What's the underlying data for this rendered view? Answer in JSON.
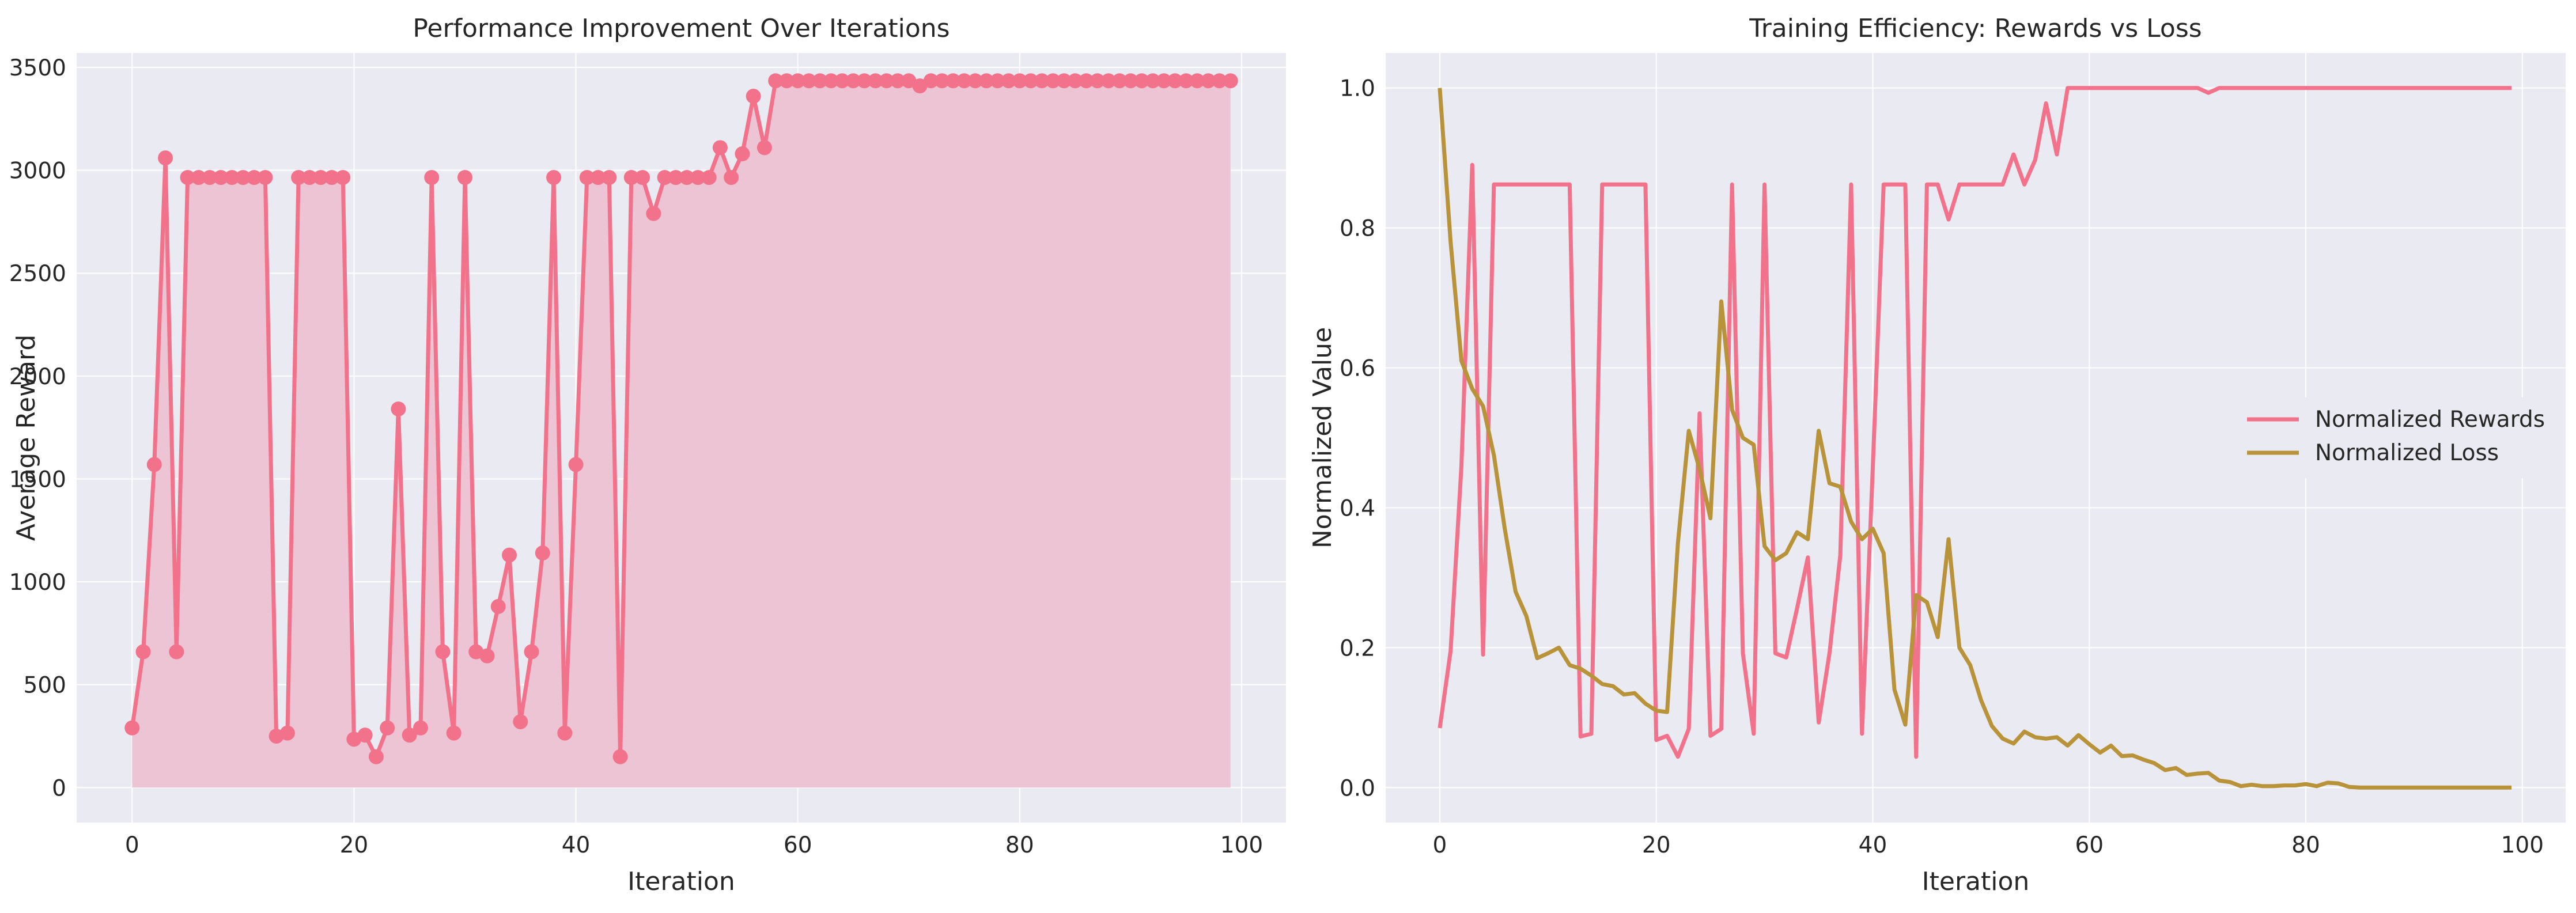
{
  "style": {
    "background": "#eaeaf2",
    "grid": "#ffffff",
    "pink": "#f1728a",
    "fill_pink": "#ecc4d4",
    "olive": "#b8933a"
  },
  "chart_data": [
    {
      "type": "line",
      "title": "Performance Improvement Over Iterations",
      "xlabel": "Iteration",
      "ylabel": "Average Reward",
      "xlim": [
        -5,
        104
      ],
      "ylim": [
        -170,
        3570
      ],
      "xticks": [
        0,
        20,
        40,
        60,
        80,
        100
      ],
      "yticks": [
        0,
        500,
        1000,
        1500,
        2000,
        2500,
        3000,
        3500
      ],
      "grid": true,
      "area_fill": true,
      "markers": true,
      "series": [
        {
          "values": [
            290,
            660,
            1570,
            3060,
            660,
            2965,
            2965,
            2965,
            2965,
            2965,
            2965,
            2965,
            2965,
            250,
            265,
            2965,
            2965,
            2965,
            2965,
            2965,
            235,
            255,
            150,
            290,
            1840,
            255,
            290,
            2965,
            660,
            265,
            2965,
            660,
            640,
            880,
            1130,
            320,
            660,
            1140,
            2965,
            265,
            1570,
            2965,
            2965,
            2965,
            150,
            2965,
            2965,
            2790,
            2965,
            2965,
            2965,
            2965,
            2965,
            3110,
            2965,
            3080,
            3360,
            3110,
            3435,
            3435,
            3435,
            3435,
            3435,
            3435,
            3435,
            3435,
            3435,
            3435,
            3435,
            3435,
            3435,
            3410,
            3435,
            3435,
            3435,
            3435,
            3435,
            3435,
            3435,
            3435,
            3435,
            3435,
            3435,
            3435,
            3435,
            3435,
            3435,
            3435,
            3435,
            3435,
            3435,
            3435,
            3435,
            3435,
            3435,
            3435,
            3435,
            3435,
            3435,
            3435
          ]
        }
      ]
    },
    {
      "type": "line",
      "title": "Training Efficiency: Rewards vs Loss",
      "xlabel": "Iteration",
      "ylabel": "Normalized Value",
      "xlim": [
        -5,
        104
      ],
      "ylim": [
        -0.05,
        1.05
      ],
      "xticks": [
        0,
        20,
        40,
        60,
        80,
        100
      ],
      "yticks": [
        0.0,
        0.2,
        0.4,
        0.6,
        0.8,
        1.0
      ],
      "grid": true,
      "legend": "center-right",
      "series": [
        {
          "name": "Normalized Rewards",
          "values": [
            0.085,
            0.195,
            0.46,
            0.89,
            0.19,
            0.862,
            0.862,
            0.862,
            0.862,
            0.862,
            0.862,
            0.862,
            0.862,
            0.073,
            0.077,
            0.862,
            0.862,
            0.862,
            0.862,
            0.862,
            0.068,
            0.074,
            0.044,
            0.084,
            0.535,
            0.074,
            0.084,
            0.862,
            0.192,
            0.077,
            0.862,
            0.192,
            0.186,
            0.256,
            0.329,
            0.093,
            0.192,
            0.332,
            0.862,
            0.077,
            0.457,
            0.862,
            0.862,
            0.862,
            0.044,
            0.862,
            0.862,
            0.812,
            0.862,
            0.862,
            0.862,
            0.862,
            0.862,
            0.905,
            0.862,
            0.897,
            0.978,
            0.905,
            1.0,
            1.0,
            1.0,
            1.0,
            1.0,
            1.0,
            1.0,
            1.0,
            1.0,
            1.0,
            1.0,
            1.0,
            1.0,
            0.993,
            1.0,
            1.0,
            1.0,
            1.0,
            1.0,
            1.0,
            1.0,
            1.0,
            1.0,
            1.0,
            1.0,
            1.0,
            1.0,
            1.0,
            1.0,
            1.0,
            1.0,
            1.0,
            1.0,
            1.0,
            1.0,
            1.0,
            1.0,
            1.0,
            1.0,
            1.0,
            1.0,
            1.0
          ]
        },
        {
          "name": "Normalized Loss",
          "values": [
            1.0,
            0.78,
            0.61,
            0.57,
            0.545,
            0.475,
            0.37,
            0.28,
            0.245,
            0.185,
            0.192,
            0.2,
            0.175,
            0.17,
            0.16,
            0.148,
            0.145,
            0.133,
            0.135,
            0.12,
            0.11,
            0.108,
            0.35,
            0.51,
            0.455,
            0.385,
            0.695,
            0.54,
            0.5,
            0.49,
            0.345,
            0.325,
            0.335,
            0.365,
            0.355,
            0.51,
            0.435,
            0.43,
            0.38,
            0.355,
            0.37,
            0.335,
            0.14,
            0.09,
            0.275,
            0.265,
            0.215,
            0.355,
            0.2,
            0.175,
            0.125,
            0.088,
            0.07,
            0.063,
            0.08,
            0.072,
            0.07,
            0.072,
            0.06,
            0.075,
            0.062,
            0.05,
            0.06,
            0.045,
            0.046,
            0.04,
            0.035,
            0.025,
            0.028,
            0.018,
            0.02,
            0.021,
            0.01,
            0.008,
            0.002,
            0.004,
            0.002,
            0.002,
            0.003,
            0.003,
            0.005,
            0.002,
            0.007,
            0.006,
            0.001,
            0.0,
            0.0,
            0.0,
            0.0,
            0.0,
            0.0,
            0.0,
            0.0,
            0.0,
            0.0,
            0.0,
            0.0,
            0.0,
            0.0,
            0.0
          ]
        }
      ]
    }
  ]
}
